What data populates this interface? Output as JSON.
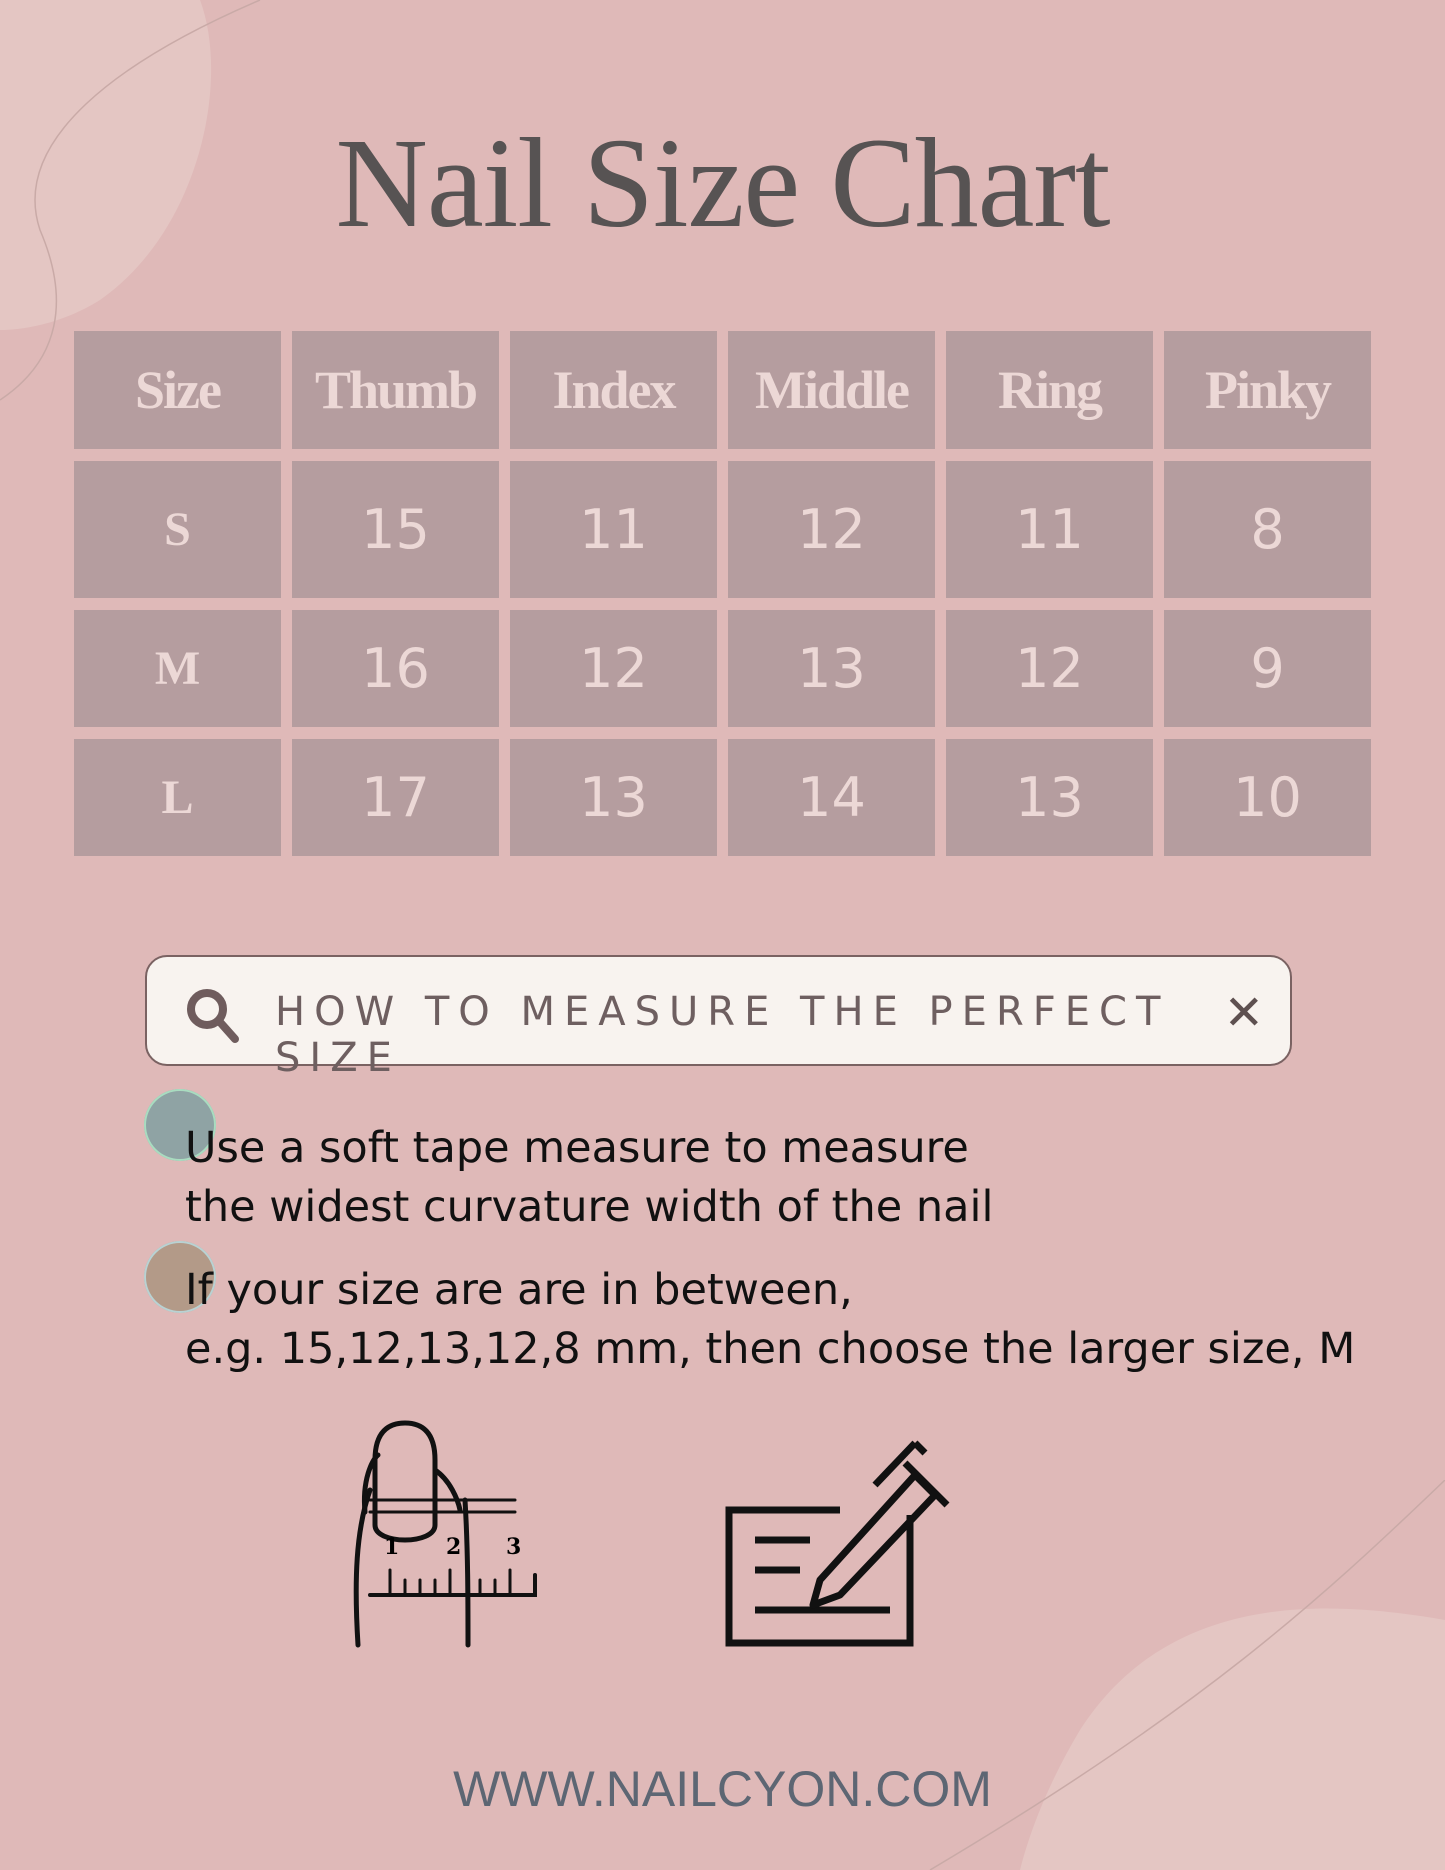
{
  "title": "Nail Size Chart",
  "table": {
    "headers": [
      "Size",
      "Thumb",
      "Index",
      "Middle",
      "Ring",
      "Pinky"
    ],
    "rows": [
      [
        "S",
        "15",
        "11",
        "12",
        "11",
        "8"
      ],
      [
        "M",
        "16",
        "12",
        "13",
        "12",
        "9"
      ],
      [
        "L",
        "17",
        "13",
        "14",
        "13",
        "10"
      ]
    ]
  },
  "search": {
    "text": "HOW TO MEASURE THE PERFECT SIZE",
    "icon": "search-icon",
    "close_icon": "close-icon"
  },
  "tips": [
    {
      "line1": "Use a soft tape measure to measure",
      "line2": "the widest curvature width of the nail",
      "dot_color": "#8fa3a4"
    },
    {
      "line1": "If your size are are in between,",
      "line2": "e.g. 15,12,13,12,8 mm, then choose the larger size, M",
      "dot_color": "#b39a88"
    }
  ],
  "ruler_numbers": [
    "1",
    "2",
    "3"
  ],
  "footer": "WWW.NAILCYON.COM",
  "colors": {
    "background": "#dfb9b8",
    "cell": "#b59d9f",
    "cell_text": "#ecd8d6",
    "title": "#575353"
  }
}
